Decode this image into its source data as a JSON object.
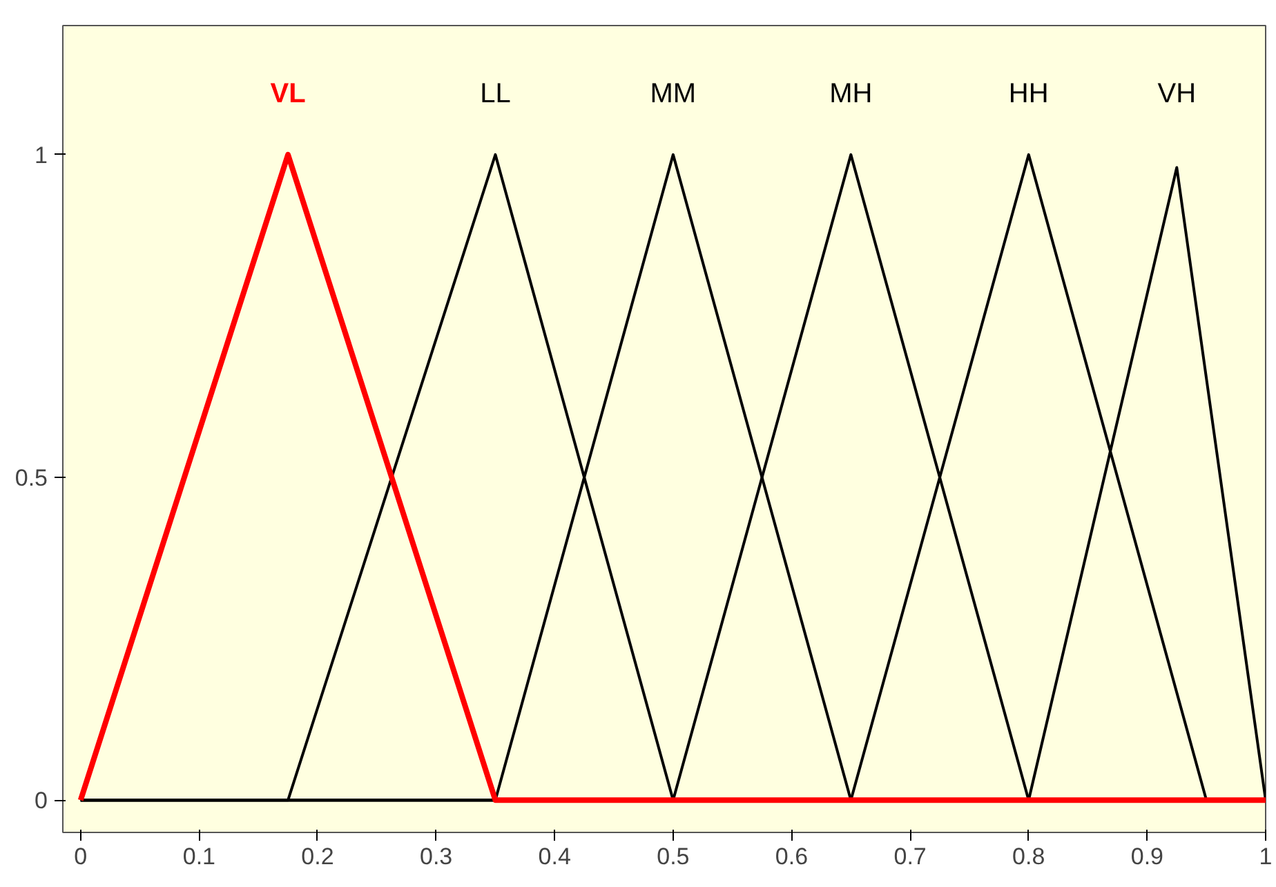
{
  "chart_data": {
    "type": "line",
    "xlim": [
      -0.015,
      1.0
    ],
    "ylim": [
      -0.05,
      1.2
    ],
    "xticks": [
      0,
      0.1,
      0.2,
      0.3,
      0.4,
      0.5,
      0.6,
      0.7,
      0.8,
      0.9,
      1
    ],
    "yticks": [
      0,
      0.5,
      1
    ],
    "grid": false,
    "series": [
      {
        "name": "LL",
        "color": "#000000",
        "x": [
          0,
          0.175,
          0.35,
          0.5,
          1
        ],
        "values": [
          0,
          0,
          1,
          0,
          0
        ]
      },
      {
        "name": "MM",
        "color": "#000000",
        "x": [
          0,
          0.35,
          0.5,
          0.65,
          1
        ],
        "values": [
          0,
          0,
          1,
          0,
          0
        ]
      },
      {
        "name": "MH",
        "color": "#000000",
        "x": [
          0,
          0.5,
          0.65,
          0.8,
          1
        ],
        "values": [
          0,
          0,
          1,
          0,
          0
        ]
      },
      {
        "name": "HH",
        "color": "#000000",
        "x": [
          0,
          0.65,
          0.8,
          0.95,
          1
        ],
        "values": [
          0,
          0,
          1,
          0,
          0
        ]
      },
      {
        "name": "VH",
        "color": "#000000",
        "x": [
          0,
          0.8,
          0.925,
          1
        ],
        "values": [
          0,
          0,
          0.98,
          0
        ]
      },
      {
        "name": "VL",
        "color": "#ff0000",
        "x": [
          0,
          0.175,
          0.35,
          1
        ],
        "values": [
          0,
          1,
          0,
          0
        ]
      }
    ]
  }
}
